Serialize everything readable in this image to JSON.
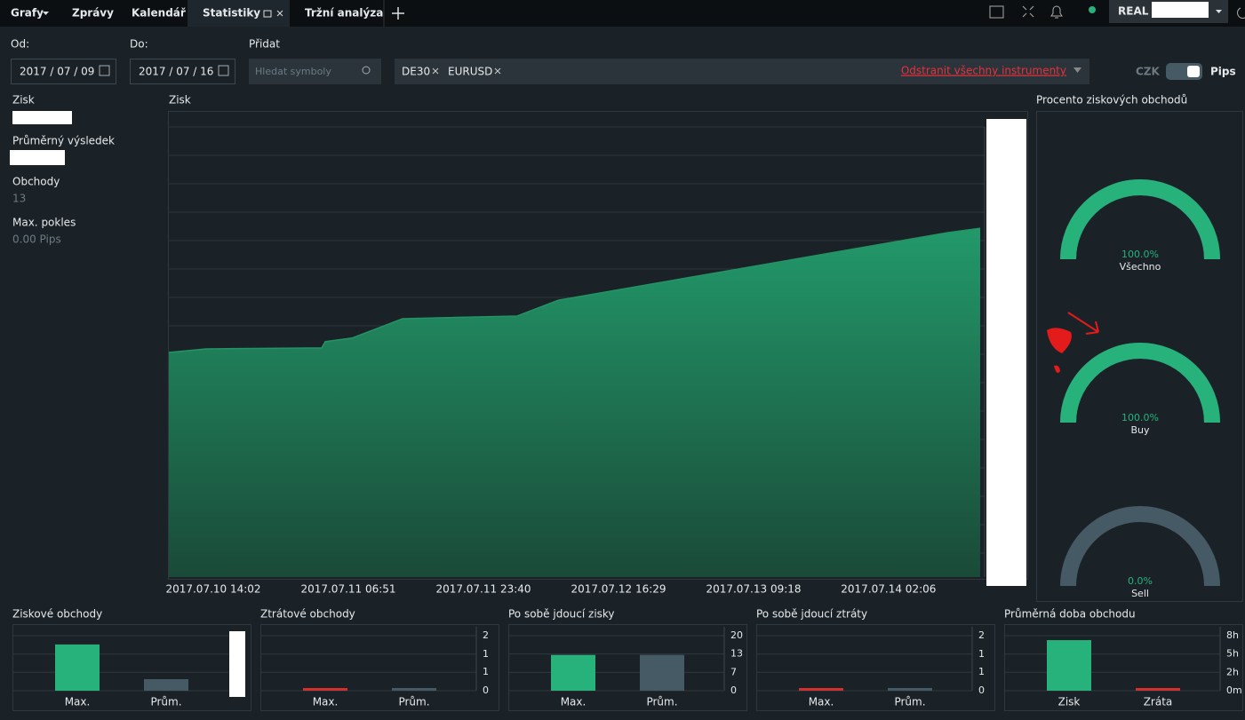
{
  "tabs": [
    "Grafy",
    "Zprávy",
    "Kalendář",
    "Statistiky",
    "Tržní analýza"
  ],
  "account": "REAL",
  "filters": {
    "from_label": "Od:",
    "from": "2017 / 07 / 09",
    "to_label": "Do:",
    "to": "2017 / 07 / 16",
    "add_label": "Přidat",
    "search_placeholder": "Hledat symboly",
    "instruments": [
      "DE30",
      "EURUSD"
    ],
    "remove_all": "Odstranit všechny instrumenty",
    "currency": "CZK",
    "unit": "Pips"
  },
  "summary": [
    {
      "label": "Zisk"
    },
    {
      "label": "Průměrný výsledek"
    },
    {
      "label": "Obchody",
      "value": "13"
    },
    {
      "label": "Max. pokles",
      "value": "0.00 Pips"
    }
  ],
  "chart_data": [
    {
      "type": "area",
      "title": "Zisk",
      "x": [
        "2017.07.10 08:30",
        "2017.07.10 13:09",
        "2017.07.11 03:32",
        "2017.07.11 03:58",
        "2017.07.11 07:18",
        "2017.07.11 13:36",
        "2017.07.12 03:52",
        "2017.07.12 08:58",
        "2017.07.14 09:25",
        "2017.07.14 13:31"
      ],
      "values": [
        49.9,
        50.7,
        50.9,
        52.3,
        53.1,
        57.4,
        58.0,
        61.5,
        76.5,
        77.5
      ],
      "xlim": [
        "2017.07.10 08:30",
        "2017.07.14 14:04"
      ],
      "xticks": [
        "2017.07.10 14:02",
        "2017.07.11 06:51",
        "2017.07.11 23:40",
        "2017.07.12 16:29",
        "2017.07.13 09:18",
        "2017.07.14 02:06"
      ],
      "ylim": [
        0,
        100
      ],
      "color": "#239466",
      "grid": true
    },
    {
      "type": "gauge",
      "title": "Procento ziskových obchodů",
      "categories": [
        "Všechno",
        "Buy",
        "Sell"
      ],
      "values": [
        100,
        100,
        0
      ],
      "value_labels": [
        "100.0%",
        "100.0%",
        "0.0%"
      ],
      "ylim": [
        0,
        100
      ],
      "color": "#26b27a"
    },
    {
      "type": "bar",
      "title": "Ziskové obchody",
      "categories": [
        "Max.",
        "Prům."
      ],
      "values": [
        84,
        21
      ],
      "colors": [
        "#26b27a",
        "#455a64"
      ],
      "ylim": [
        0,
        100
      ],
      "grid": true
    },
    {
      "type": "bar",
      "title": "Ztrátové obchody",
      "categories": [
        "Max.",
        "Prům."
      ],
      "values": [
        0,
        0
      ],
      "colors": [
        "#d32f2f",
        "#455a64"
      ],
      "ylim": [
        0,
        2
      ],
      "yticks": [
        2,
        {
          "value": 1.33,
          "label": "1"
        },
        {
          "value": 0.67,
          "label": "1"
        },
        0
      ],
      "grid": true
    },
    {
      "type": "bar",
      "title": "Po sobě jdoucí zisky",
      "categories": [
        "Max.",
        "Prům."
      ],
      "values": [
        13,
        13
      ],
      "colors": [
        "#26b27a",
        "#455a64"
      ],
      "ylim": [
        0,
        20
      ],
      "yticks": [
        20,
        {
          "value": 13.33,
          "label": "13"
        },
        {
          "value": 6.67,
          "label": "7"
        },
        0
      ],
      "grid": true
    },
    {
      "type": "bar",
      "title": "Po sobě jdoucí ztráty",
      "categories": [
        "Max.",
        "Prům."
      ],
      "values": [
        0,
        0
      ],
      "colors": [
        "#d32f2f",
        "#455a64"
      ],
      "ylim": [
        0,
        2
      ],
      "yticks": [
        2,
        {
          "value": 1.33,
          "label": "1"
        },
        {
          "value": 0.67,
          "label": "1"
        },
        0
      ],
      "grid": true
    },
    {
      "type": "bar",
      "title": "Průměrná doba obchodu",
      "categories": [
        "Zisk",
        "Zráta"
      ],
      "values": [
        7.35,
        0
      ],
      "colors": [
        "#26b27a",
        "#d32f2f"
      ],
      "ylim": [
        0,
        8
      ],
      "yticks": [
        {
          "value": 8,
          "label": "8h"
        },
        {
          "value": 5.33,
          "label": "5h"
        },
        {
          "value": 2.67,
          "label": "2h"
        },
        {
          "value": 0,
          "label": "0m"
        }
      ],
      "grid": true
    }
  ]
}
